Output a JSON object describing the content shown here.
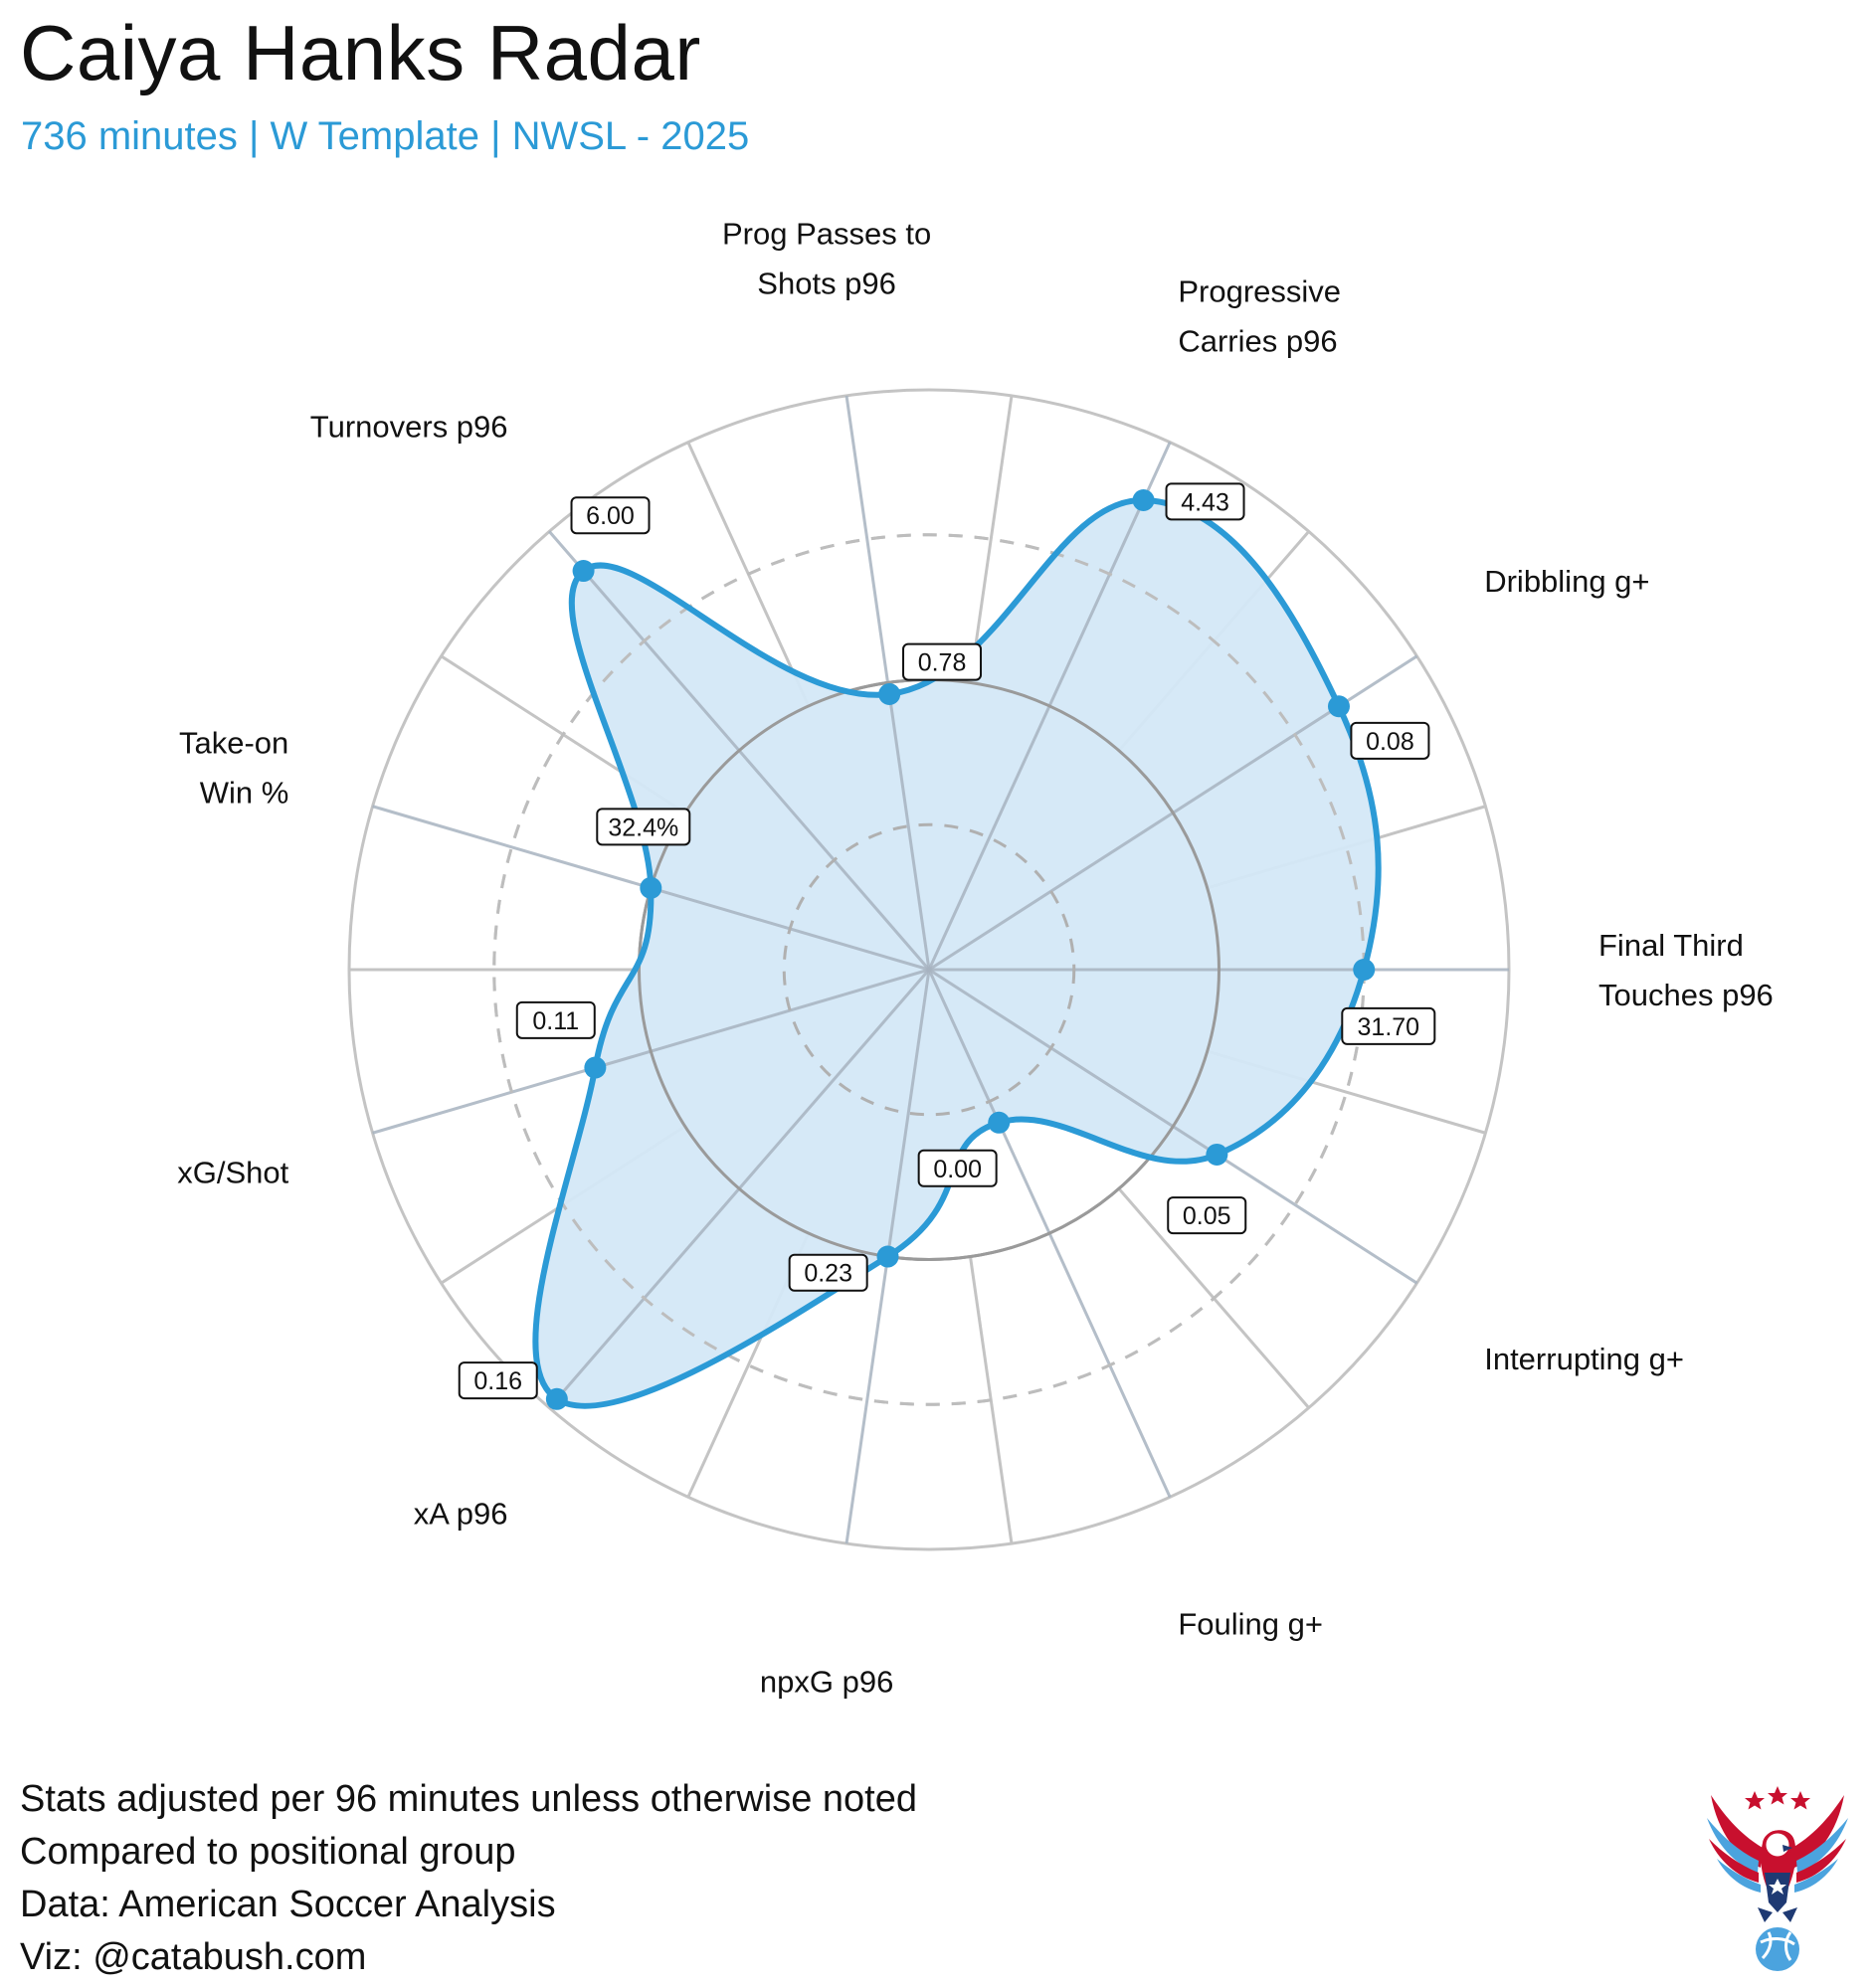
{
  "header": {
    "title": "Caiya Hanks Radar",
    "subtitle": "736 minutes | W Template | NWSL - 2025"
  },
  "chart_data": {
    "type": "radar",
    "title": "Caiya Hanks Radar",
    "subtitle": "736 minutes | W Template | NWSL - 2025",
    "axes": [
      {
        "label": [
          "Final Third",
          "Touches p96"
        ],
        "value_label": "31.70",
        "percentile": 0.75
      },
      {
        "label": [
          "Dribbling g+"
        ],
        "value_label": "0.08",
        "percentile": 0.84
      },
      {
        "label": [
          "Progressive",
          "Carries p96"
        ],
        "value_label": "4.43",
        "percentile": 0.89
      },
      {
        "label": [
          "Prog Passes to",
          "Shots p96"
        ],
        "value_label": "0.78",
        "percentile": 0.48
      },
      {
        "label": [
          "Turnovers p96"
        ],
        "value_label": "6.00",
        "percentile": 0.91
      },
      {
        "label": [
          "Take-on",
          "Win %"
        ],
        "value_label": "32.4%",
        "percentile": 0.5
      },
      {
        "label": [
          "xG/Shot"
        ],
        "value_label": "0.11",
        "percentile": 0.6
      },
      {
        "label": [
          "xA p96"
        ],
        "value_label": "0.16",
        "percentile": 0.98
      },
      {
        "label": [
          "npxG p96"
        ],
        "value_label": "0.23",
        "percentile": 0.5
      },
      {
        "label": [
          "Fouling g+"
        ],
        "value_label": "0.00",
        "percentile": 0.29
      },
      {
        "label": [
          "Interrupting g+"
        ],
        "value_label": "0.05",
        "percentile": 0.59
      }
    ],
    "rings": [
      0.25,
      0.5,
      0.75,
      1.0
    ],
    "range": [
      0,
      1
    ],
    "fill_color": "#d4e8f7",
    "line_color": "#2b9ad6"
  },
  "footer": {
    "lines": [
      "Stats adjusted per 96 minutes unless otherwise noted",
      "Compared to positional group",
      "Data: American Soccer Analysis",
      "Viz: @catabush.com"
    ]
  },
  "logo": {
    "icon": "eagle-soccer-ball-logo"
  },
  "colors": {
    "accent": "#2b9ad6",
    "fill": "#d4e8f7",
    "grid": "#c4c4c4",
    "star": "#c8102e"
  }
}
